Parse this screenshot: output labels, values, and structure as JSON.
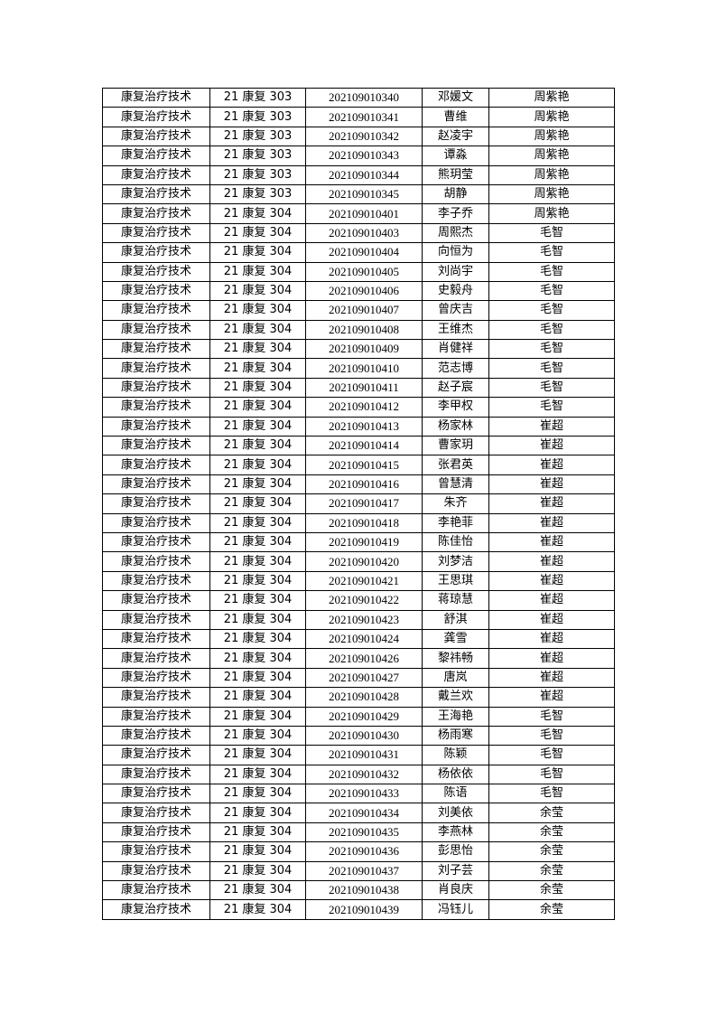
{
  "table": {
    "rows": [
      [
        "康复治疗技术",
        "21 康复 303",
        "202109010340",
        "邓媛文",
        "周紫艳"
      ],
      [
        "康复治疗技术",
        "21 康复 303",
        "202109010341",
        "曹维",
        "周紫艳"
      ],
      [
        "康复治疗技术",
        "21 康复 303",
        "202109010342",
        "赵凌宇",
        "周紫艳"
      ],
      [
        "康复治疗技术",
        "21 康复 303",
        "202109010343",
        "谭淼",
        "周紫艳"
      ],
      [
        "康复治疗技术",
        "21 康复 303",
        "202109010344",
        "熊玥莹",
        "周紫艳"
      ],
      [
        "康复治疗技术",
        "21 康复 303",
        "202109010345",
        "胡静",
        "周紫艳"
      ],
      [
        "康复治疗技术",
        "21 康复 304",
        "202109010401",
        "李子乔",
        "周紫艳"
      ],
      [
        "康复治疗技术",
        "21 康复 304",
        "202109010403",
        "周熙杰",
        "毛智"
      ],
      [
        "康复治疗技术",
        "21 康复 304",
        "202109010404",
        "向恒为",
        "毛智"
      ],
      [
        "康复治疗技术",
        "21 康复 304",
        "202109010405",
        "刘尚宇",
        "毛智"
      ],
      [
        "康复治疗技术",
        "21 康复 304",
        "202109010406",
        "史毅舟",
        "毛智"
      ],
      [
        "康复治疗技术",
        "21 康复 304",
        "202109010407",
        "曾庆吉",
        "毛智"
      ],
      [
        "康复治疗技术",
        "21 康复 304",
        "202109010408",
        "王维杰",
        "毛智"
      ],
      [
        "康复治疗技术",
        "21 康复 304",
        "202109010409",
        "肖健祥",
        "毛智"
      ],
      [
        "康复治疗技术",
        "21 康复 304",
        "202109010410",
        "范志博",
        "毛智"
      ],
      [
        "康复治疗技术",
        "21 康复 304",
        "202109010411",
        "赵子宸",
        "毛智"
      ],
      [
        "康复治疗技术",
        "21 康复 304",
        "202109010412",
        "李甲权",
        "毛智"
      ],
      [
        "康复治疗技术",
        "21 康复 304",
        "202109010413",
        "杨家林",
        "崔超"
      ],
      [
        "康复治疗技术",
        "21 康复 304",
        "202109010414",
        "曹家玥",
        "崔超"
      ],
      [
        "康复治疗技术",
        "21 康复 304",
        "202109010415",
        "张君英",
        "崔超"
      ],
      [
        "康复治疗技术",
        "21 康复 304",
        "202109010416",
        "曾慧清",
        "崔超"
      ],
      [
        "康复治疗技术",
        "21 康复 304",
        "202109010417",
        "朱齐",
        "崔超"
      ],
      [
        "康复治疗技术",
        "21 康复 304",
        "202109010418",
        "李艳菲",
        "崔超"
      ],
      [
        "康复治疗技术",
        "21 康复 304",
        "202109010419",
        "陈佳怡",
        "崔超"
      ],
      [
        "康复治疗技术",
        "21 康复 304",
        "202109010420",
        "刘梦洁",
        "崔超"
      ],
      [
        "康复治疗技术",
        "21 康复 304",
        "202109010421",
        "王思琪",
        "崔超"
      ],
      [
        "康复治疗技术",
        "21 康复 304",
        "202109010422",
        "蒋琼慧",
        "崔超"
      ],
      [
        "康复治疗技术",
        "21 康复 304",
        "202109010423",
        "舒淇",
        "崔超"
      ],
      [
        "康复治疗技术",
        "21 康复 304",
        "202109010424",
        "龚雪",
        "崔超"
      ],
      [
        "康复治疗技术",
        "21 康复 304",
        "202109010426",
        "黎祎畅",
        "崔超"
      ],
      [
        "康复治疗技术",
        "21 康复 304",
        "202109010427",
        "唐岚",
        "崔超"
      ],
      [
        "康复治疗技术",
        "21 康复 304",
        "202109010428",
        "戴兰欢",
        "崔超"
      ],
      [
        "康复治疗技术",
        "21 康复 304",
        "202109010429",
        "王海艳",
        "毛智"
      ],
      [
        "康复治疗技术",
        "21 康复 304",
        "202109010430",
        "杨雨寒",
        "毛智"
      ],
      [
        "康复治疗技术",
        "21 康复 304",
        "202109010431",
        "陈颖",
        "毛智"
      ],
      [
        "康复治疗技术",
        "21 康复 304",
        "202109010432",
        "杨依依",
        "毛智"
      ],
      [
        "康复治疗技术",
        "21 康复 304",
        "202109010433",
        "陈语",
        "毛智"
      ],
      [
        "康复治疗技术",
        "21 康复 304",
        "202109010434",
        "刘美依",
        "余莹"
      ],
      [
        "康复治疗技术",
        "21 康复 304",
        "202109010435",
        "李燕林",
        "余莹"
      ],
      [
        "康复治疗技术",
        "21 康复 304",
        "202109010436",
        "彭思怡",
        "余莹"
      ],
      [
        "康复治疗技术",
        "21 康复 304",
        "202109010437",
        "刘子芸",
        "余莹"
      ],
      [
        "康复治疗技术",
        "21 康复 304",
        "202109010438",
        "肖良庆",
        "余莹"
      ],
      [
        "康复治疗技术",
        "21 康复 304",
        "202109010439",
        "冯钰儿",
        "余莹"
      ]
    ]
  }
}
